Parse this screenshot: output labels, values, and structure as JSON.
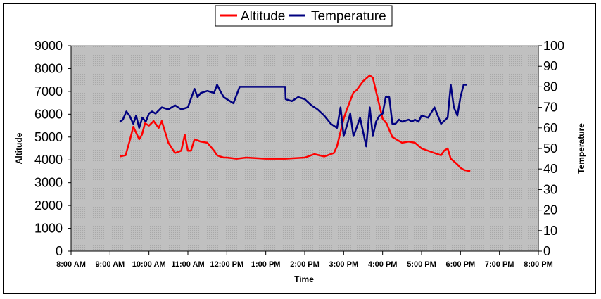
{
  "chart_data": {
    "type": "line",
    "title": "",
    "xlabel": "Time",
    "ylabel": "Altitude",
    "y2label": "Temperature",
    "x_ticks": [
      "8:00 AM",
      "9:00 AM",
      "10:00 AM",
      "11:00 AM",
      "12:00 PM",
      "1:00 PM",
      "2:00 PM",
      "3:00 PM",
      "4:00 PM",
      "5:00 PM",
      "6:00 PM",
      "7:00 PM",
      "8:00 PM"
    ],
    "x_range_hours": [
      8,
      20
    ],
    "ylim": [
      0,
      9000
    ],
    "y_ticks": [
      "0",
      "1000",
      "2000",
      "3000",
      "4000",
      "5000",
      "6000",
      "7000",
      "8000",
      "9000"
    ],
    "y2lim": [
      0,
      100
    ],
    "y2_ticks": [
      "0",
      "10",
      "20",
      "30",
      "40",
      "50",
      "60",
      "70",
      "80",
      "90",
      "100"
    ],
    "legend_position": "top",
    "series": [
      {
        "name": "Altitude",
        "color": "#ff0000",
        "axis": "left",
        "x": [
          9.25,
          9.4,
          9.5,
          9.6,
          9.75,
          9.82,
          9.9,
          10.0,
          10.12,
          10.25,
          10.33,
          10.5,
          10.67,
          10.83,
          10.92,
          11.0,
          11.08,
          11.17,
          11.33,
          11.5,
          11.67,
          11.75,
          11.83,
          11.92,
          12.0,
          12.25,
          12.5,
          13.0,
          13.5,
          14.0,
          14.25,
          14.5,
          14.75,
          14.83,
          15.0,
          15.08,
          15.17,
          15.25,
          15.33,
          15.5,
          15.67,
          15.75,
          15.83,
          16.0,
          16.1,
          16.25,
          16.5,
          16.67,
          16.83,
          17.0,
          17.33,
          17.5,
          17.58,
          17.67,
          17.75,
          17.92,
          18.0,
          18.1,
          18.25
        ],
        "values": [
          4150,
          4200,
          4800,
          5450,
          4900,
          5100,
          5600,
          5500,
          5700,
          5400,
          5700,
          4750,
          4300,
          4400,
          5100,
          4400,
          4400,
          4900,
          4800,
          4750,
          4400,
          4200,
          4150,
          4100,
          4100,
          4050,
          4100,
          4050,
          4050,
          4100,
          4250,
          4150,
          4300,
          4600,
          5800,
          6200,
          6600,
          6950,
          7050,
          7450,
          7700,
          7600,
          7000,
          5800,
          5600,
          5000,
          4750,
          4800,
          4750,
          4500,
          4300,
          4200,
          4400,
          4500,
          4050,
          3800,
          3650,
          3550,
          3500
        ]
      },
      {
        "name": "Temperature",
        "color": "#000080",
        "axis": "right",
        "x": [
          9.25,
          9.33,
          9.42,
          9.5,
          9.6,
          9.67,
          9.75,
          9.83,
          9.92,
          10.0,
          10.08,
          10.17,
          10.33,
          10.5,
          10.67,
          10.83,
          11.0,
          11.17,
          11.25,
          11.33,
          11.5,
          11.67,
          11.75,
          11.83,
          11.92,
          12.0,
          12.17,
          12.33,
          12.5,
          12.51,
          12.67,
          13.0,
          13.33,
          13.5,
          13.51,
          13.67,
          13.83,
          14.0,
          14.17,
          14.33,
          14.5,
          14.67,
          14.83,
          14.92,
          15.0,
          15.08,
          15.17,
          15.25,
          15.33,
          15.42,
          15.5,
          15.58,
          15.67,
          15.75,
          15.83,
          15.92,
          16.0,
          16.08,
          16.17,
          16.25,
          16.33,
          16.42,
          16.5,
          16.67,
          16.75,
          16.83,
          16.92,
          17.0,
          17.17,
          17.33,
          17.5,
          17.67,
          17.75,
          17.83,
          17.92,
          18.0,
          18.08,
          18.17
        ],
        "values": [
          63,
          64,
          68,
          66,
          62,
          66,
          60,
          65,
          63,
          67,
          68,
          67,
          70,
          69,
          71,
          69,
          70,
          79,
          75,
          77,
          78,
          77,
          81,
          78,
          75,
          74,
          72,
          80,
          80,
          80,
          80,
          80,
          80,
          80,
          74,
          73,
          75,
          74,
          71,
          69,
          66,
          62,
          60,
          70,
          56,
          61,
          67,
          56,
          60,
          65,
          58,
          51,
          70,
          56,
          63,
          66,
          67,
          75,
          75,
          62,
          62,
          64,
          63,
          64,
          63,
          64,
          63,
          66,
          65,
          70,
          62,
          65,
          81,
          70,
          66,
          75,
          81,
          81
        ]
      }
    ]
  }
}
